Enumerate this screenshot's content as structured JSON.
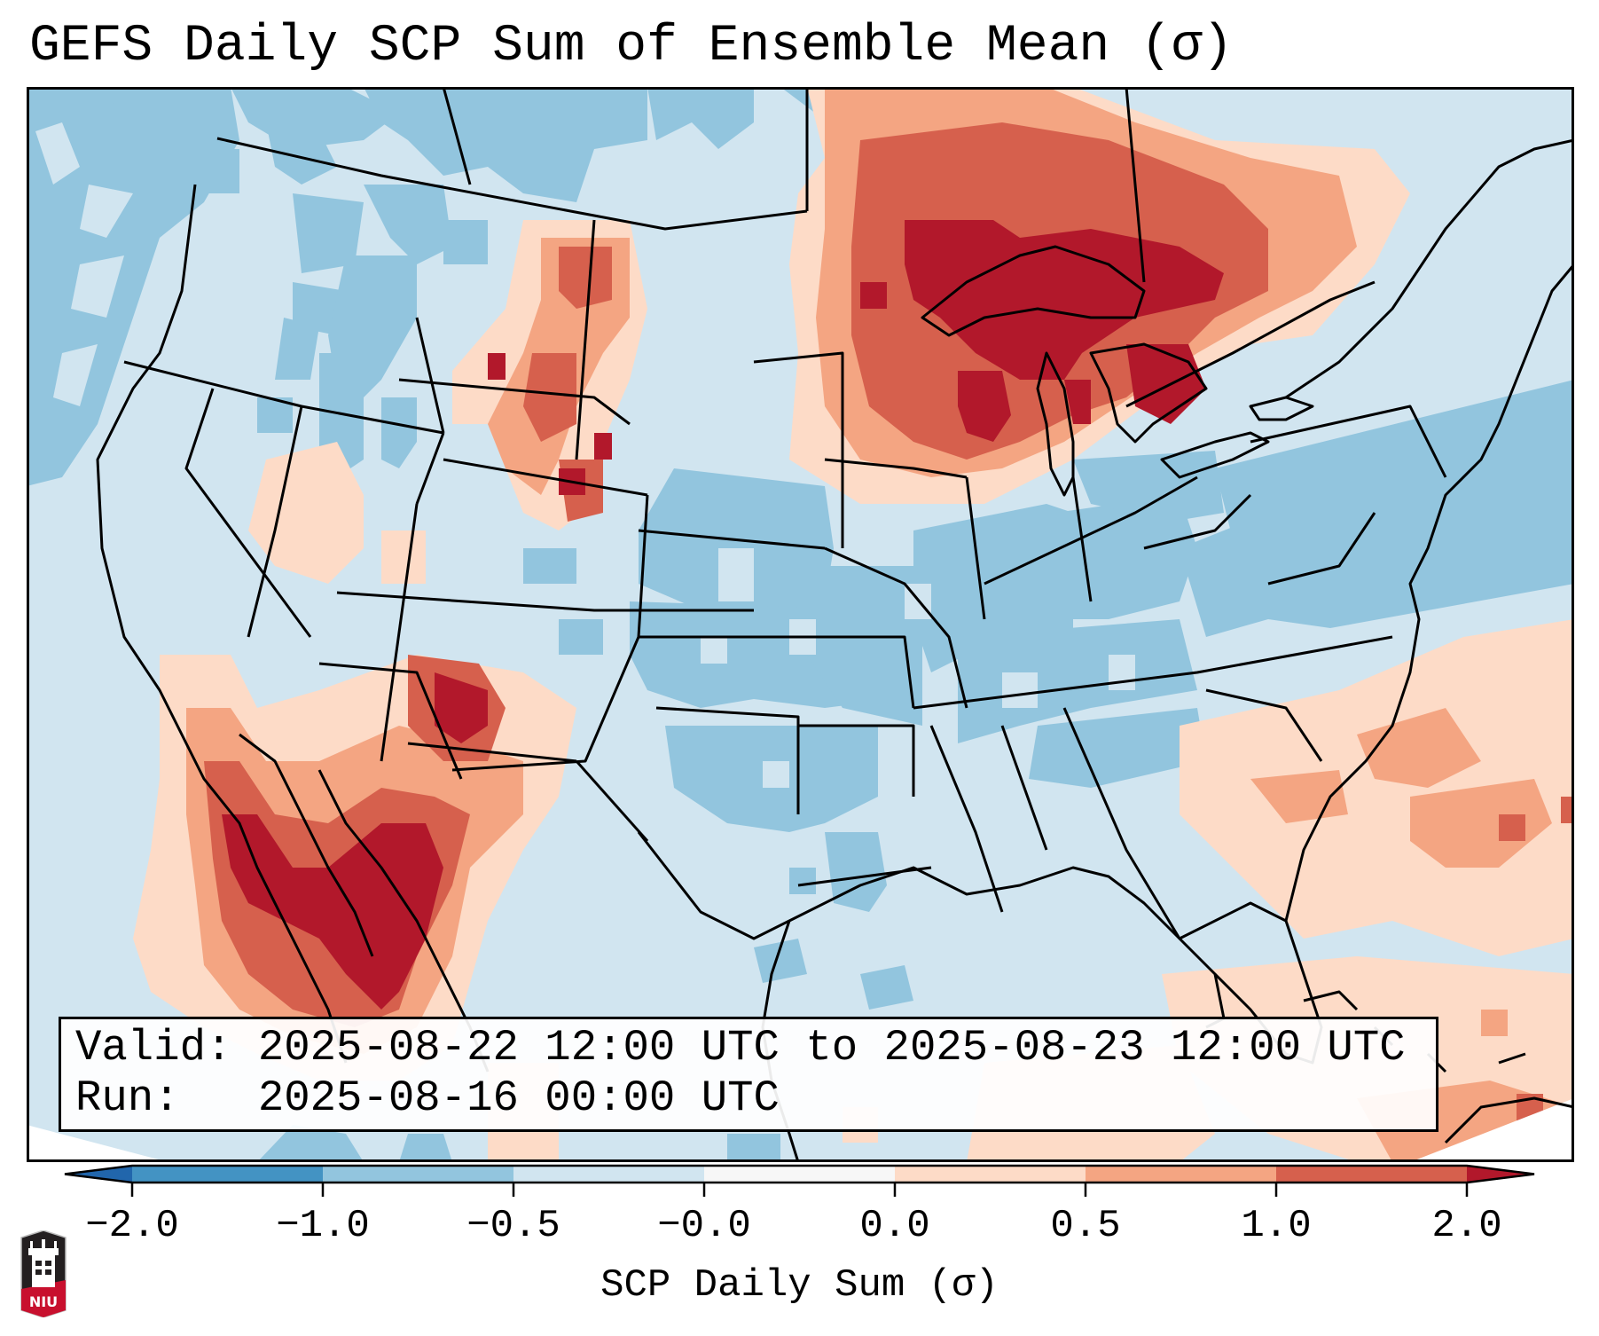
{
  "title": "GEFS Daily SCP Sum of Ensemble Mean (σ)",
  "info": {
    "valid_line": "Valid: 2025-08-22 12:00 UTC to 2025-08-23 12:00 UTC",
    "run_line": "Run:   2025-08-16 00:00 UTC"
  },
  "colorbar": {
    "label": "SCP Daily Sum (σ)",
    "ticks": [
      "−2.0",
      "−1.0",
      "−0.5",
      "−0.0",
      "0.0",
      "0.5",
      "1.0",
      "2.0"
    ],
    "boundaries": [
      -2.0,
      -1.0,
      -0.5,
      -0.0,
      0.0,
      0.5,
      1.0,
      2.0
    ],
    "colors": {
      "under": "#2166ac",
      "bins": [
        "#4393c3",
        "#92c5de",
        "#d1e5f0",
        "#f7f7f7",
        "#fddbc7",
        "#f4a582",
        "#d6604d"
      ],
      "over": "#b2182b"
    },
    "extend": "both"
  },
  "logo": {
    "text": "NIU"
  },
  "map": {
    "region": "Continental United States",
    "field": "SCP daily sum standardized anomaly (σ)",
    "background_color": "#d1e5f0",
    "outside_color": "#ffffff",
    "border_color": "#000000"
  }
}
